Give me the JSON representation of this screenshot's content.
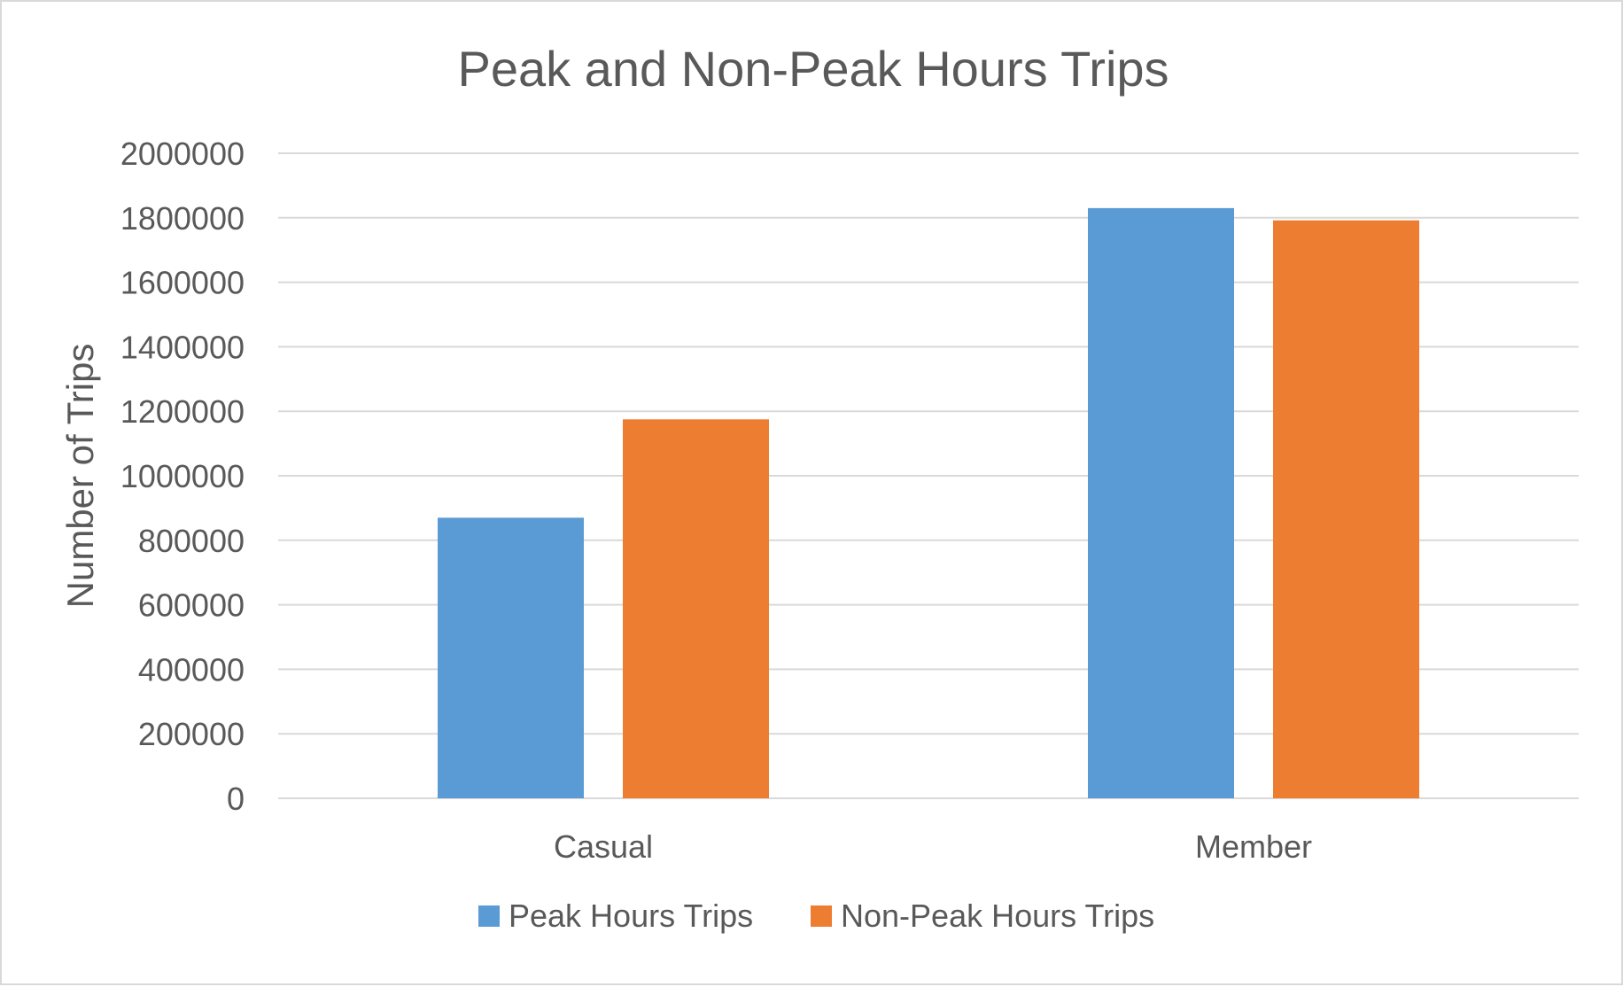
{
  "chart_data": {
    "type": "bar",
    "title": "Peak and Non-Peak Hours Trips",
    "xlabel": "",
    "ylabel": "Number of Trips",
    "ylim": [
      0,
      2000000
    ],
    "yticks": [
      0,
      200000,
      400000,
      600000,
      800000,
      1000000,
      1200000,
      1400000,
      1600000,
      1800000,
      2000000
    ],
    "categories": [
      "Casual",
      "Member"
    ],
    "series": [
      {
        "name": "Peak Hours Trips",
        "color": "#5b9bd5",
        "values": [
          870000,
          1830000
        ]
      },
      {
        "name": "Non-Peak Hours Trips",
        "color": "#ed7d31",
        "values": [
          1175000,
          1792000
        ]
      }
    ],
    "grid": true,
    "legend": "bottom"
  }
}
